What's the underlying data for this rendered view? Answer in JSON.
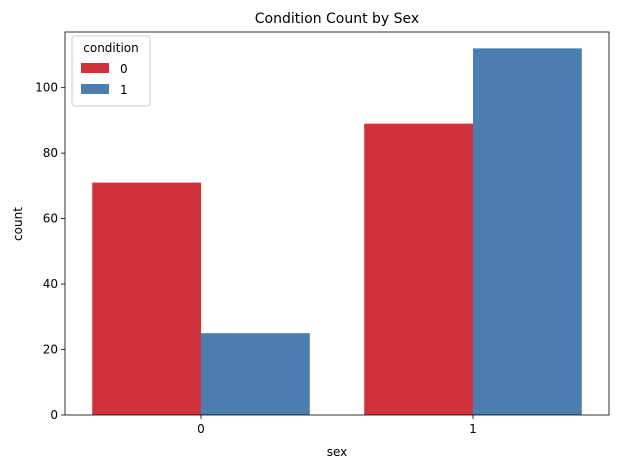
{
  "chart_data": {
    "type": "bar",
    "title": "Condition Count by Sex",
    "xlabel": "sex",
    "ylabel": "count",
    "categories": [
      "0",
      "1"
    ],
    "series": [
      {
        "name": "0",
        "values": [
          71,
          89
        ],
        "color": "#d0323a"
      },
      {
        "name": "1",
        "values": [
          25,
          112
        ],
        "color": "#4a7eaf"
      }
    ],
    "ylim": [
      0,
      117
    ],
    "yticks": [
      0,
      20,
      40,
      60,
      80,
      100
    ],
    "legend": {
      "title": "condition",
      "position": "top-left"
    },
    "grid": false
  }
}
